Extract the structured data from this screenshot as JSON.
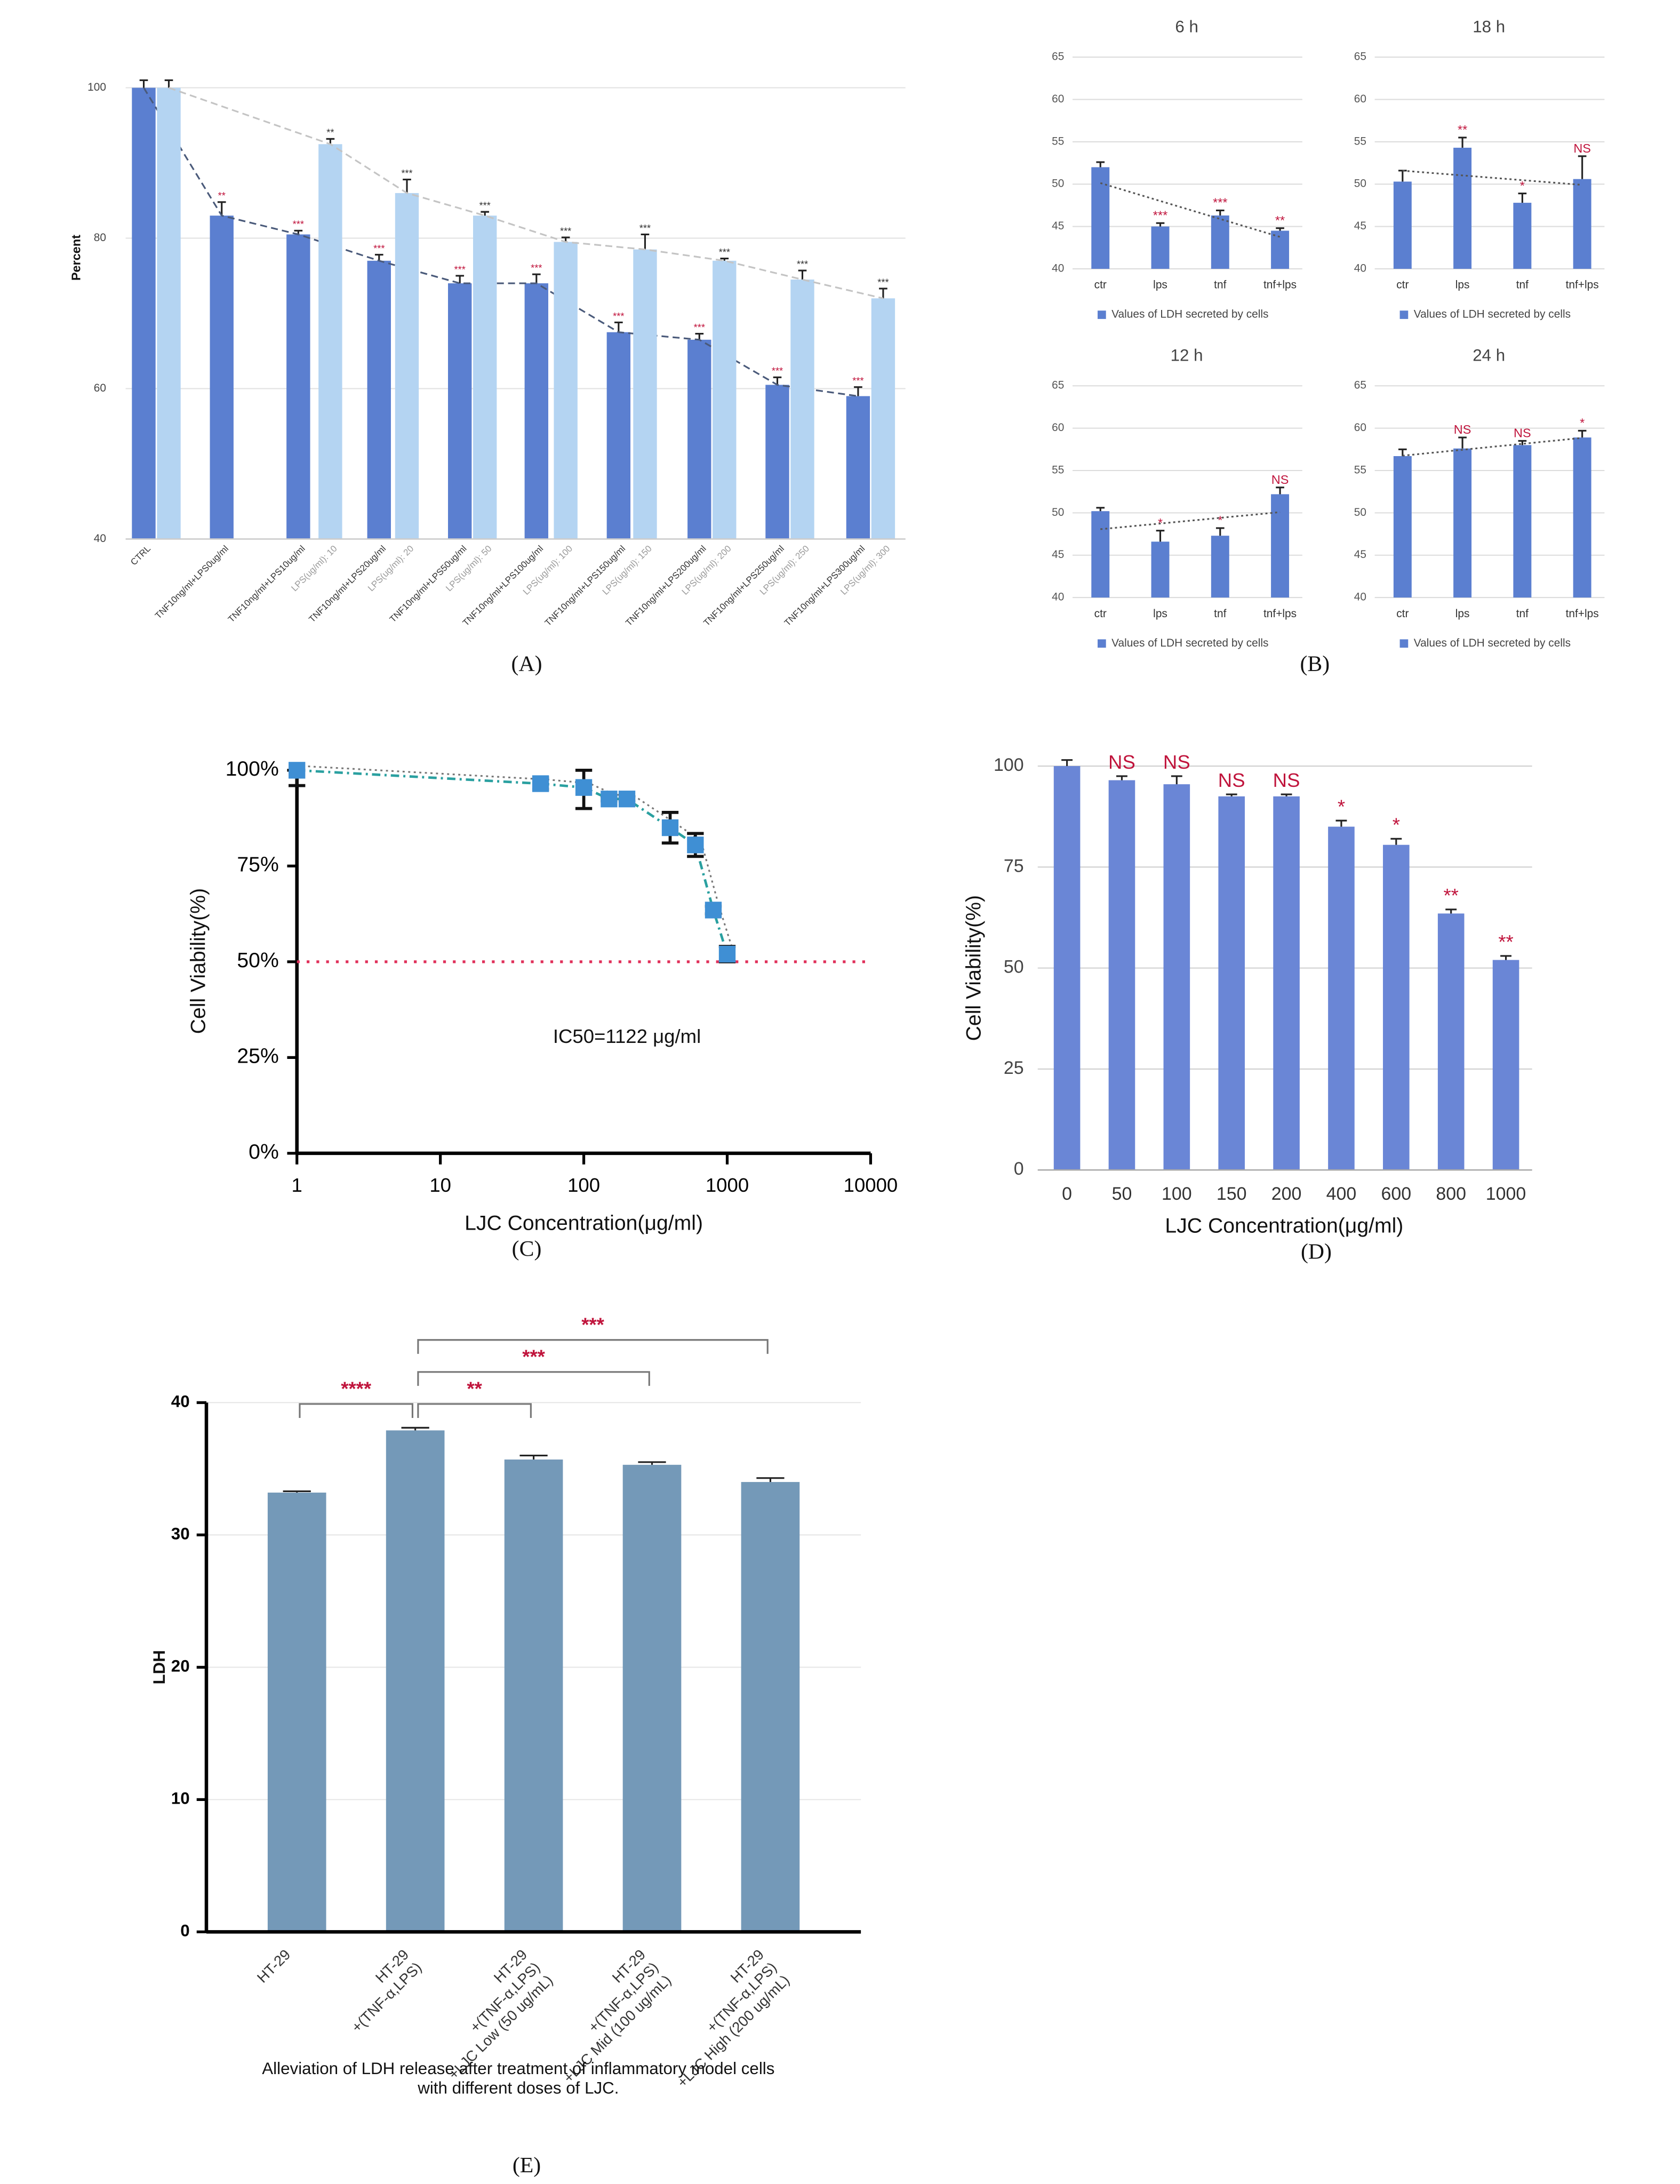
{
  "chart_data": [
    {
      "type": "bar",
      "panel_label": "(A)",
      "ylabel": "Percent",
      "categories": [
        "CTRL",
        null,
        "TNF10ng/ml+LPS0ug/ml",
        "TNF10ng/ml+LPS10ug/ml",
        "LPS(ug/ml): 10",
        "TNF10ng/ml+LPS20ug/ml",
        "LPS(ug/ml): 20",
        "TNF10ng/ml+LPS50ug/ml",
        "LPS(ug/ml): 50",
        "TNF10ng/ml+LPS100ug/ml",
        "LPS(ug/ml): 100",
        "TNF10ng/ml+LPS150ug/ml",
        "LPS(ug/ml): 150",
        "TNF10ng/ml+LPS200ug/ml",
        "LPS(ug/ml): 200",
        "TNF10ng/ml+LPS250ug/ml",
        "LPS(ug/ml): 250",
        "TNF10ng/ml+LPS300ug/ml",
        "LPS(ug/ml): 300"
      ],
      "ylim": [
        40,
        100
      ],
      "yticks": [
        40,
        60,
        80,
        100
      ],
      "grid": true,
      "series": [
        {
          "color": "#5b7fd0",
          "trend": "dashed",
          "trend_color": "#4a5a7a",
          "sig_color": "#c0143c",
          "values": [
            100,
            null,
            83,
            80.5,
            null,
            77,
            null,
            74,
            null,
            74,
            null,
            67.5,
            null,
            66.5,
            null,
            60.5,
            null,
            59,
            null
          ],
          "errors": [
            1,
            null,
            1.8,
            0.5,
            null,
            0.8,
            null,
            1,
            null,
            1.2,
            null,
            1.3,
            null,
            0.8,
            null,
            1,
            null,
            1.2,
            null
          ],
          "sig": [
            null,
            null,
            "**",
            "***",
            null,
            "***",
            null,
            "***",
            null,
            "***",
            null,
            "***",
            null,
            "***",
            null,
            "***",
            null,
            "***",
            null
          ]
        },
        {
          "color": "#b4d4f2",
          "trend": "dashed",
          "trend_color": "#c4c4c4",
          "sig_color": "#333333",
          "values": [
            null,
            100,
            null,
            null,
            92.5,
            null,
            86,
            null,
            83,
            null,
            79.5,
            null,
            78.5,
            null,
            77,
            null,
            74.5,
            null,
            72
          ],
          "errors": [
            null,
            1,
            null,
            null,
            0.7,
            null,
            1.8,
            null,
            0.5,
            null,
            0.6,
            null,
            2,
            null,
            0.3,
            null,
            1.2,
            null,
            1.3
          ],
          "sig": [
            null,
            null,
            null,
            null,
            "**",
            null,
            "***",
            null,
            "***",
            null,
            "***",
            null,
            "***",
            null,
            "***",
            null,
            "***",
            null,
            "***"
          ]
        }
      ]
    },
    {
      "type": "bar",
      "title": "6 h",
      "panel_label": "(B)",
      "categories": [
        "ctr",
        "lps",
        "tnf",
        "tnf+lps"
      ],
      "ylim": [
        40,
        65
      ],
      "yticks": [
        40,
        45,
        50,
        55,
        60,
        65
      ],
      "grid": true,
      "series": [
        {
          "name": "Values of LDH secreted by cells",
          "color": "#5b7fd0",
          "trend": "linear",
          "trend_color": "#555555",
          "sig_color": "#c0143c",
          "values": [
            52,
            45,
            46.3,
            44.5
          ],
          "errors": [
            0.6,
            0.4,
            0.6,
            0.3
          ],
          "sig": [
            null,
            "***",
            "***",
            "**"
          ]
        }
      ]
    },
    {
      "type": "bar",
      "title": "18 h",
      "categories": [
        "ctr",
        "lps",
        "tnf",
        "tnf+lps"
      ],
      "ylim": [
        40,
        65
      ],
      "yticks": [
        40,
        45,
        50,
        55,
        60,
        65
      ],
      "grid": true,
      "series": [
        {
          "name": "Values of LDH secreted by cells",
          "color": "#5b7fd0",
          "trend": "linear",
          "trend_color": "#555555",
          "sig_color": "#c0143c",
          "values": [
            50.3,
            54.3,
            47.8,
            50.6
          ],
          "errors": [
            1.3,
            1.2,
            1.1,
            2.7
          ],
          "sig": [
            null,
            "**",
            "*",
            "NS"
          ]
        }
      ]
    },
    {
      "type": "bar",
      "title": "12 h",
      "categories": [
        "ctr",
        "lps",
        "tnf",
        "tnf+lps"
      ],
      "ylim": [
        40,
        65
      ],
      "yticks": [
        40,
        45,
        50,
        55,
        60,
        65
      ],
      "grid": true,
      "series": [
        {
          "name": "Values of LDH secreted by cells",
          "color": "#5b7fd0",
          "trend": "linear",
          "trend_color": "#555555",
          "sig_color": "#c0143c",
          "values": [
            50.2,
            46.6,
            47.3,
            52.2
          ],
          "errors": [
            0.4,
            1.3,
            0.9,
            0.8
          ],
          "sig": [
            null,
            "*",
            "*",
            "NS"
          ]
        }
      ]
    },
    {
      "type": "bar",
      "title": "24 h",
      "categories": [
        "ctr",
        "lps",
        "tnf",
        "tnf+lps"
      ],
      "ylim": [
        40,
        65
      ],
      "yticks": [
        40,
        45,
        50,
        55,
        60,
        65
      ],
      "grid": true,
      "series": [
        {
          "name": "Values of LDH secreted by cells",
          "color": "#5b7fd0",
          "trend": "linear",
          "trend_color": "#555555",
          "sig_color": "#c0143c",
          "values": [
            56.7,
            57.6,
            58,
            58.9
          ],
          "errors": [
            0.8,
            1.3,
            0.5,
            0.8
          ],
          "sig": [
            null,
            "NS",
            "NS",
            "*"
          ]
        }
      ]
    },
    {
      "type": "scatter",
      "panel_label": "(C)",
      "xlabel": "LJC Concentration(μg/ml)",
      "ylabel": "Cell Viability(%)",
      "annotation": "IC50=1122 μg/ml",
      "xscale": "log",
      "xlim": [
        1,
        10000
      ],
      "xticks": [
        1,
        10,
        100,
        1000,
        10000
      ],
      "ylim": [
        0,
        100
      ],
      "yticks": [
        {
          "value": 0,
          "label": "0%"
        },
        {
          "value": 25,
          "label": "25%"
        },
        {
          "value": 50,
          "label": "50%"
        },
        {
          "value": 75,
          "label": "75%"
        },
        {
          "value": 100,
          "label": "100%"
        }
      ],
      "x": [
        1,
        50,
        100,
        150,
        200,
        400,
        600,
        800,
        1000
      ],
      "series": [
        {
          "color": "#3f8fd4",
          "values": [
            100,
            96.5,
            95.5,
            92.5,
            92.5,
            85,
            80.5,
            63.5,
            52
          ],
          "errors": [
            4,
            1.5,
            5.5,
            0.5,
            0.5,
            4,
            3,
            1,
            2
          ]
        }
      ],
      "hline": 50,
      "hline_color": "#e0305a"
    },
    {
      "type": "bar",
      "panel_label": "(D)",
      "xlabel": "LJC Concentration(μg/ml)",
      "ylabel": "Cell Viability(%)",
      "categories": [
        "0",
        "50",
        "100",
        "150",
        "200",
        "400",
        "600",
        "800",
        "1000"
      ],
      "ylim": [
        0,
        100
      ],
      "yticks": [
        0,
        25,
        50,
        75,
        100
      ],
      "grid": true,
      "series": [
        {
          "color": "#6a86d6",
          "sig_color": "#c0143c",
          "values": [
            100,
            96.5,
            95.5,
            92.5,
            92.5,
            85,
            80.5,
            63.5,
            52
          ],
          "errors": [
            1.5,
            1,
            2,
            0.5,
            0.5,
            1.5,
            1.5,
            1,
            1
          ],
          "sig": [
            null,
            "NS",
            "NS",
            "NS",
            "NS",
            "*",
            "*",
            "**",
            "**"
          ]
        }
      ]
    },
    {
      "type": "bar",
      "panel_label": "(E)",
      "ylabel": "LDH",
      "caption": [
        "Alleviation of LDH release after treatment of inflammatory model cells",
        "with different doses of LJC."
      ],
      "categories": [
        [
          "HT-29"
        ],
        [
          "HT-29",
          "+(TNF-α,LPS)"
        ],
        [
          "HT-29",
          "+(TNF-α,LPS)",
          "+LJC Low (50 ug/mL)"
        ],
        [
          "HT-29",
          "+(TNF-α,LPS)",
          "+LJC Mid (100 ug/mL)"
        ],
        [
          "HT-29",
          "+(TNF-α,LPS)",
          "+LJC High (200 ug/mL)"
        ]
      ],
      "ylim": [
        0,
        40
      ],
      "yticks": [
        0,
        10,
        20,
        30,
        40
      ],
      "grid": true,
      "series": [
        {
          "color": "#7499b8",
          "values": [
            33.2,
            37.9,
            35.7,
            35.3,
            34.0
          ],
          "errors": [
            0.1,
            0.2,
            0.3,
            0.2,
            0.3
          ]
        }
      ],
      "comparisons": [
        {
          "pair": [
            0,
            1
          ],
          "label": "****"
        },
        {
          "pair": [
            1,
            2
          ],
          "label": "**"
        },
        {
          "pair": [
            1,
            3
          ],
          "label": "***"
        },
        {
          "pair": [
            1,
            4
          ],
          "label": "***"
        }
      ]
    }
  ]
}
